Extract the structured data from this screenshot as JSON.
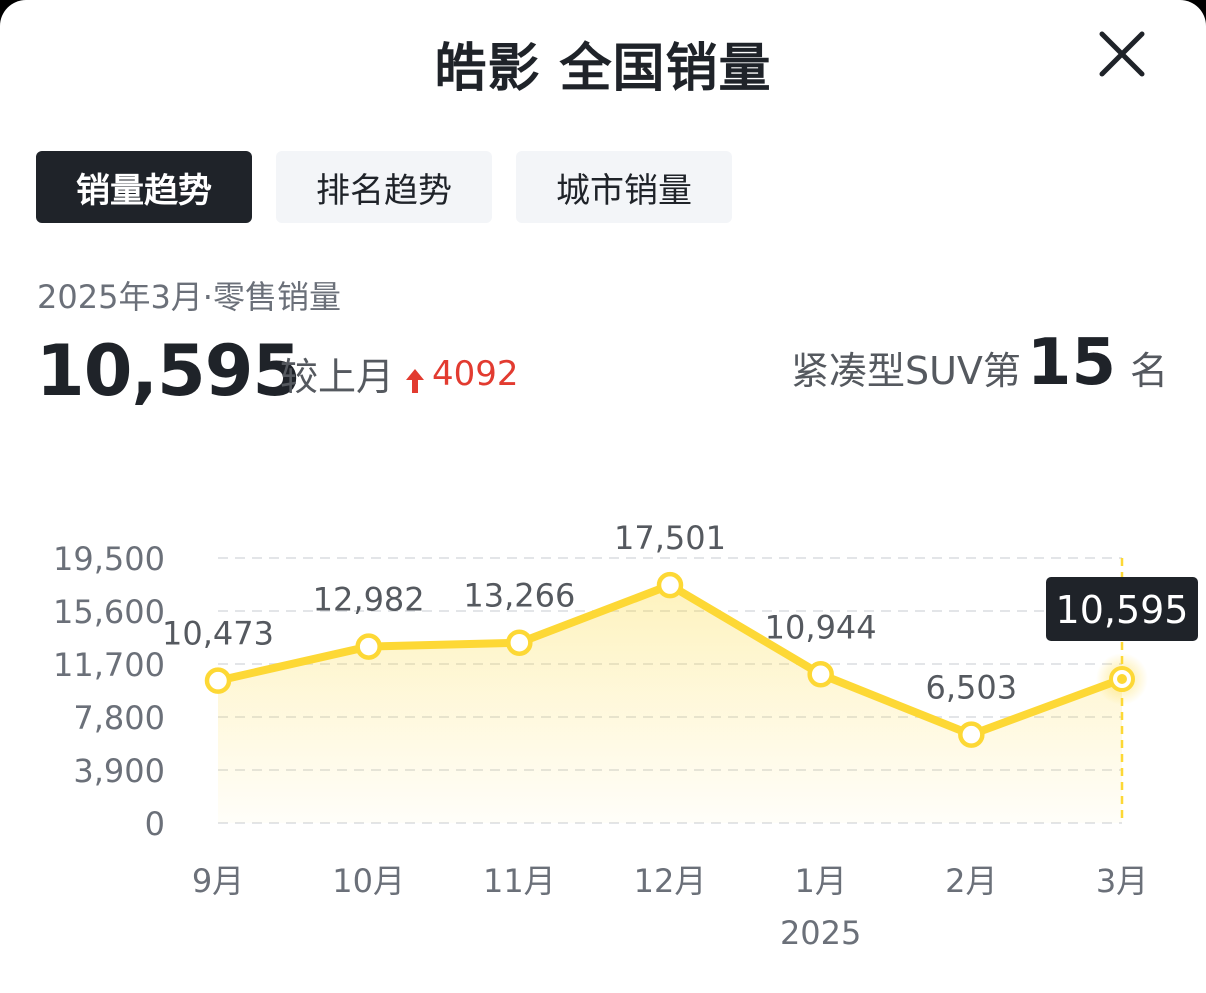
{
  "header": {
    "title": "皓影 全国销量"
  },
  "tabs": [
    {
      "label": "销量趋势",
      "active": true
    },
    {
      "label": "排名趋势",
      "active": false
    },
    {
      "label": "城市销量",
      "active": false
    }
  ],
  "summary": {
    "period": "2025年3月·零售销量",
    "value": "10,595",
    "compare_label": "较上月",
    "delta": "4092",
    "rank_prefix": "紧凑型SUV第",
    "rank": "15",
    "rank_suffix": "名"
  },
  "colors": {
    "line": "#FDD835",
    "delta_up": "#E23B30",
    "dark": "#1F2329"
  },
  "icons": {
    "close": "close-icon",
    "delta": "arrow-up-icon"
  },
  "chart_data": {
    "type": "line",
    "categories": [
      "9月",
      "10月",
      "11月",
      "12月",
      "1月",
      "2月",
      "3月"
    ],
    "year_label": "2025",
    "year_label_under": "1月",
    "series": [
      {
        "values": [
          10473,
          12982,
          13266,
          17501,
          10944,
          6503,
          10595
        ]
      }
    ],
    "y_ticks": [
      0,
      3900,
      7800,
      11700,
      15600,
      19500
    ],
    "y_tick_labels": [
      "0",
      "3,900",
      "7,800",
      "11,700",
      "15,600",
      "19,500"
    ],
    "point_labels": [
      "10,473",
      "12,982",
      "13,266",
      "17,501",
      "10,944",
      "6,503",
      "10,595"
    ],
    "ylim": [
      0,
      19500
    ],
    "highlight_index": 6,
    "grid": true,
    "title": "",
    "xlabel": "",
    "ylabel": ""
  }
}
